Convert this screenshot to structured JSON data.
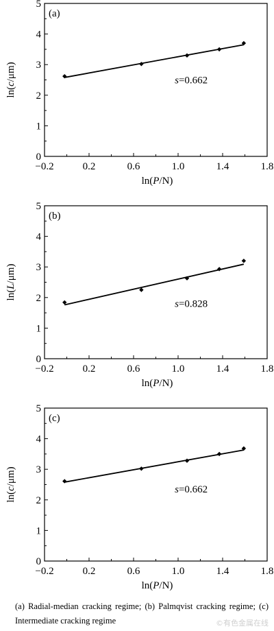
{
  "chart_data": [
    {
      "type": "scatter",
      "panel_label": "(a)",
      "xlabel": "ln(P/N)",
      "ylabel": "ln(c/μm)",
      "xlim": [
        -0.2,
        1.8
      ],
      "ylim": [
        0,
        5
      ],
      "xticks": [
        "−0.2",
        "0.2",
        "0.6",
        "1.0",
        "1.4",
        "1.8"
      ],
      "yticks": [
        "0",
        "1",
        "2",
        "3",
        "4",
        "5"
      ],
      "points": [
        {
          "x": -0.02,
          "y": 2.62
        },
        {
          "x": 0.67,
          "y": 3.02
        },
        {
          "x": 1.08,
          "y": 3.3
        },
        {
          "x": 1.37,
          "y": 3.5
        },
        {
          "x": 1.59,
          "y": 3.7
        }
      ],
      "fit_line": {
        "x": [
          -0.02,
          1.59
        ],
        "y": [
          2.58,
          3.65
        ]
      },
      "annotation": {
        "text": "s=0.662",
        "x": 0.97,
        "y": 2.5
      },
      "grid": false
    },
    {
      "type": "scatter",
      "panel_label": "(b)",
      "xlabel": "ln(P/N)",
      "ylabel": "ln(L/μm)",
      "xlim": [
        -0.2,
        1.8
      ],
      "ylim": [
        0,
        5
      ],
      "xticks": [
        "−0.2",
        "0.2",
        "0.6",
        "1.0",
        "1.4",
        "1.8"
      ],
      "yticks": [
        "0",
        "1",
        "2",
        "3",
        "4",
        "5"
      ],
      "points": [
        {
          "x": -0.02,
          "y": 1.84
        },
        {
          "x": 0.67,
          "y": 2.25
        },
        {
          "x": 1.08,
          "y": 2.63
        },
        {
          "x": 1.37,
          "y": 2.93
        },
        {
          "x": 1.59,
          "y": 3.2
        }
      ],
      "fit_line": {
        "x": [
          -0.02,
          1.59
        ],
        "y": [
          1.76,
          3.09
        ]
      },
      "annotation": {
        "text": "s=0.828",
        "x": 0.97,
        "y": 1.8
      },
      "grid": false
    },
    {
      "type": "scatter",
      "panel_label": "(c)",
      "xlabel": "ln(P/N)",
      "ylabel": "ln(c/μm)",
      "xlim": [
        -0.2,
        1.8
      ],
      "ylim": [
        0,
        5
      ],
      "xticks": [
        "−0.2",
        "0.2",
        "0.6",
        "1.0",
        "1.4",
        "1.8"
      ],
      "yticks": [
        "0",
        "1",
        "2",
        "3",
        "4",
        "5"
      ],
      "points": [
        {
          "x": -0.02,
          "y": 2.61
        },
        {
          "x": 0.67,
          "y": 3.02
        },
        {
          "x": 1.08,
          "y": 3.28
        },
        {
          "x": 1.37,
          "y": 3.5
        },
        {
          "x": 1.59,
          "y": 3.68
        }
      ],
      "fit_line": {
        "x": [
          -0.02,
          1.59
        ],
        "y": [
          2.58,
          3.63
        ]
      },
      "annotation": {
        "text": "s=0.662",
        "x": 0.97,
        "y": 2.35
      },
      "grid": false
    }
  ],
  "caption": "(a) Radial-median cracking regime; (b) Palmqvist cracking regime; (c) Intermediate cracking regime",
  "watermark": "©有色金属在线"
}
